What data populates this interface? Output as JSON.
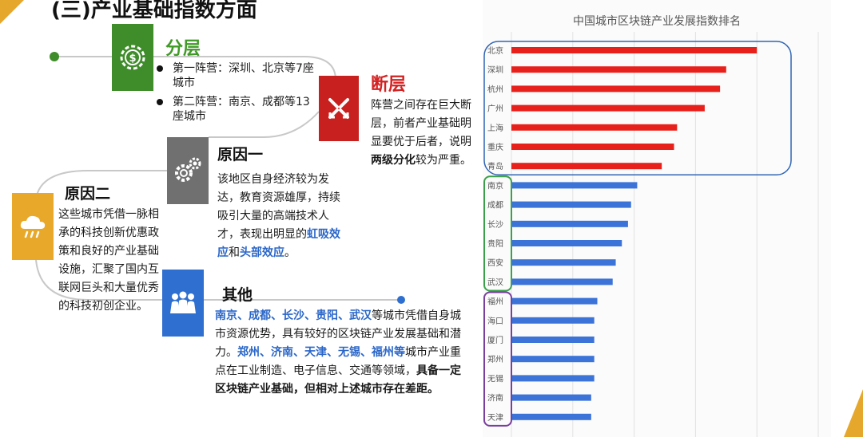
{
  "title": "(三)产业基础指数方面",
  "sections": {
    "fenceng": {
      "heading": "分层",
      "items": [
        "第一阵营：深圳、北京等7座城市",
        "第二阵营：南京、成都等13座城市"
      ]
    },
    "duanceng": {
      "heading": "断层",
      "text_before": "阵营之间存在巨大断层，前者产业基础明显要优于后者，说明",
      "text_bold": "两级分化",
      "text_after": "较为严重。"
    },
    "reason1": {
      "heading": "原因一",
      "text_before": "该地区自身经济较为发达，教育资源雄厚，持续吸引大量的高端技术人才，表现出明显的",
      "hl1": "虹吸效应",
      "mid": "和",
      "hl2": "头部效应",
      "text_after": "。"
    },
    "reason2": {
      "heading": "原因二",
      "text": "这些城市凭借一脉相承的科技创新优惠政策和良好的产业基础设施，汇聚了国内互联网巨头和大量优秀的科技初创企业。"
    },
    "other": {
      "heading": "其他",
      "hl1": "南京、成都、长沙、贵阳、武汉",
      "text1": "等城市凭借自身城市资源优势，具有较好的区块链产业发展基础和潜力。",
      "hl2": "郑州、济南、天津、无锡、福州等",
      "text2": "城市产业重点在工业制造、电子信息、交通等领域，",
      "bold": "具备一定区块链产业基础，但相对上述城市存在差距。"
    }
  },
  "icons": {
    "fenceng": "dollar-gear-icon",
    "duanceng": "broken-arrows-icon",
    "reason1": "gears-icon",
    "reason2": "cloud-rain-icon",
    "other": "people-icon"
  },
  "colors": {
    "tier1_bar": "#e8201c",
    "tier2_bar": "#3b73d8",
    "group1_outline": "#2f64b4",
    "group2_outline": "#3aa04a",
    "group3_outline": "#7a3e9c"
  },
  "chart_data": {
    "type": "bar",
    "orientation": "horizontal",
    "title": "中国城市区块链产业发展指数排名",
    "categories": [
      "北京",
      "深圳",
      "杭州",
      "广州",
      "上海",
      "重庆",
      "青岛",
      "南京",
      "成都",
      "长沙",
      "贵阳",
      "西安",
      "武汉",
      "福州",
      "海口",
      "厦门",
      "郑州",
      "无锡",
      "济南",
      "天津"
    ],
    "values": [
      80,
      70,
      68,
      63,
      54,
      53,
      49,
      41,
      39,
      38,
      36,
      34,
      33,
      28,
      27,
      27,
      27,
      27,
      26,
      26
    ],
    "xlim": [
      0,
      100
    ],
    "grid": true,
    "groups": [
      {
        "start": 0,
        "end": 6
      },
      {
        "start": 7,
        "end": 12
      },
      {
        "start": 13,
        "end": 19
      }
    ]
  }
}
